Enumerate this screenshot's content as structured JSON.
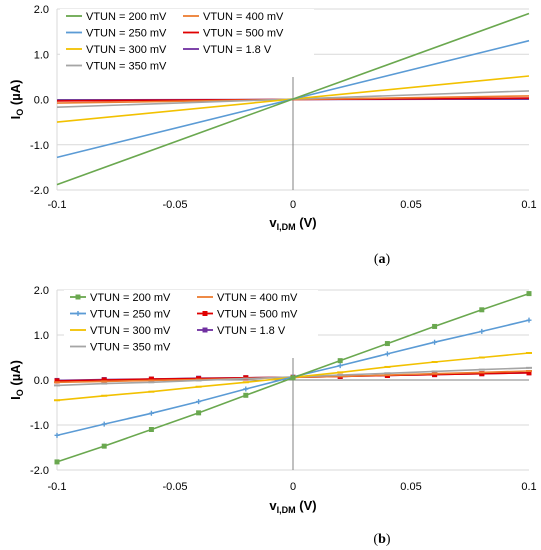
{
  "colors": {
    "VTUN = 200 mV": "#6aa84f",
    "VTUN = 250 mV": "#5b9bd5",
    "VTUN = 300 mV": "#f2c100",
    "VTUN = 350 mV": "#a5a5a5",
    "VTUN = 400 mV": "#ed7d31",
    "VTUN = 500 mV": "#e00000",
    "VTUN = 1.8 V": "#7030a0"
  },
  "chart_data": [
    {
      "type": "line",
      "caption_letter": "a",
      "xlabel": {
        "main": "v",
        "sub": "I,DM",
        "unit": " (V)"
      },
      "ylabel": {
        "main": "I",
        "sub": "O",
        "unit": " (µA)"
      },
      "xlim": [
        -0.1,
        0.1
      ],
      "ylim": [
        -2.0,
        2.0
      ],
      "xticks": [
        "-0.1",
        "-0.05",
        "0",
        "0.05",
        "0.1"
      ],
      "yticks": [
        "2.0",
        "1.0",
        "0.0",
        "-1.0",
        "-2.0"
      ],
      "grid": true,
      "legend_position": "top-left",
      "legend": [
        "VTUN = 200 mV",
        "VTUN = 400 mV",
        "VTUN = 250 mV",
        "VTUN = 500 mV",
        "VTUN = 300 mV",
        "VTUN = 1.8 V",
        "VTUN = 350 mV"
      ],
      "markers": false,
      "series": [
        {
          "name": "VTUN = 200 mV",
          "x": [
            -0.1,
            0.1
          ],
          "y": [
            -1.88,
            1.9
          ]
        },
        {
          "name": "VTUN = 250 mV",
          "x": [
            -0.1,
            0.1
          ],
          "y": [
            -1.28,
            1.3
          ]
        },
        {
          "name": "VTUN = 300 mV",
          "x": [
            -0.1,
            0.1
          ],
          "y": [
            -0.5,
            0.52
          ]
        },
        {
          "name": "VTUN = 350 mV",
          "x": [
            -0.1,
            0.1
          ],
          "y": [
            -0.17,
            0.19
          ]
        },
        {
          "name": "VTUN = 400 mV",
          "x": [
            -0.1,
            0.1
          ],
          "y": [
            -0.08,
            0.08
          ]
        },
        {
          "name": "VTUN = 500 mV",
          "x": [
            -0.1,
            0.1
          ],
          "y": [
            -0.03,
            0.03
          ]
        },
        {
          "name": "VTUN = 1.8 V",
          "x": [
            -0.1,
            0.1
          ],
          "y": [
            -0.01,
            0.01
          ]
        }
      ]
    },
    {
      "type": "line",
      "caption_letter": "b",
      "xlabel": {
        "main": "v",
        "sub": "I,DM",
        "unit": " (V)"
      },
      "ylabel": {
        "main": "I",
        "sub": "O",
        "unit": " (µA)"
      },
      "xlim": [
        -0.1,
        0.1
      ],
      "ylim": [
        -2.0,
        2.0
      ],
      "xticks": [
        "-0.1",
        "-0.05",
        "0",
        "0.05",
        "0.1"
      ],
      "yticks": [
        "2.0",
        "1.0",
        "0.0",
        "-1.0",
        "-2.0"
      ],
      "grid": true,
      "legend_position": "top-left",
      "legend": [
        "VTUN = 200 mV",
        "VTUN = 400 mV",
        "VTUN = 250 mV",
        "VTUN = 500 mV",
        "VTUN = 300 mV",
        "VTUN = 1.8 V",
        "VTUN = 350 mV"
      ],
      "markers": true,
      "series": [
        {
          "name": "VTUN = 200 mV",
          "x": [
            -0.1,
            -0.08,
            -0.06,
            -0.04,
            -0.02,
            0,
            0.02,
            0.04,
            0.06,
            0.08,
            0.1
          ],
          "y": [
            -1.82,
            -1.47,
            -1.1,
            -0.73,
            -0.34,
            0.05,
            0.43,
            0.81,
            1.19,
            1.56,
            1.92
          ]
        },
        {
          "name": "VTUN = 250 mV",
          "x": [
            -0.1,
            -0.08,
            -0.06,
            -0.04,
            -0.02,
            0,
            0.02,
            0.04,
            0.06,
            0.08,
            0.1
          ],
          "y": [
            -1.23,
            -0.98,
            -0.74,
            -0.48,
            -0.2,
            0.07,
            0.32,
            0.58,
            0.84,
            1.08,
            1.33
          ]
        },
        {
          "name": "VTUN = 300 mV",
          "x": [
            -0.1,
            -0.08,
            -0.06,
            -0.04,
            -0.02,
            0,
            0.02,
            0.04,
            0.06,
            0.08,
            0.1
          ],
          "y": [
            -0.45,
            -0.35,
            -0.26,
            -0.15,
            -0.05,
            0.06,
            0.17,
            0.29,
            0.4,
            0.5,
            0.6
          ]
        },
        {
          "name": "VTUN = 350 mV",
          "x": [
            -0.1,
            -0.08,
            -0.06,
            -0.04,
            -0.02,
            0,
            0.02,
            0.04,
            0.06,
            0.08,
            0.1
          ],
          "y": [
            -0.12,
            -0.08,
            -0.05,
            -0.01,
            0.03,
            0.07,
            0.11,
            0.15,
            0.19,
            0.23,
            0.27
          ]
        },
        {
          "name": "VTUN = 400 mV",
          "x": [
            -0.1,
            -0.08,
            -0.06,
            -0.04,
            -0.02,
            0,
            0.02,
            0.04,
            0.06,
            0.08,
            0.1
          ],
          "y": [
            -0.05,
            -0.03,
            -0.01,
            0.01,
            0.03,
            0.06,
            0.08,
            0.11,
            0.14,
            0.17,
            0.2
          ]
        },
        {
          "name": "VTUN = 500 mV",
          "x": [
            -0.1,
            -0.08,
            -0.06,
            -0.04,
            -0.02,
            0,
            0.02,
            0.04,
            0.06,
            0.08,
            0.1
          ],
          "y": [
            -0.02,
            0.0,
            0.02,
            0.03,
            0.05,
            0.06,
            0.08,
            0.1,
            0.12,
            0.14,
            0.16
          ]
        },
        {
          "name": "VTUN = 1.8 V",
          "x": [
            -0.1,
            -0.08,
            -0.06,
            -0.04,
            -0.02,
            0,
            0.02,
            0.04,
            0.06,
            0.08,
            0.1
          ],
          "y": [
            -0.01,
            0.01,
            0.02,
            0.04,
            0.05,
            0.06,
            0.08,
            0.1,
            0.12,
            0.14,
            0.16
          ]
        }
      ]
    }
  ]
}
